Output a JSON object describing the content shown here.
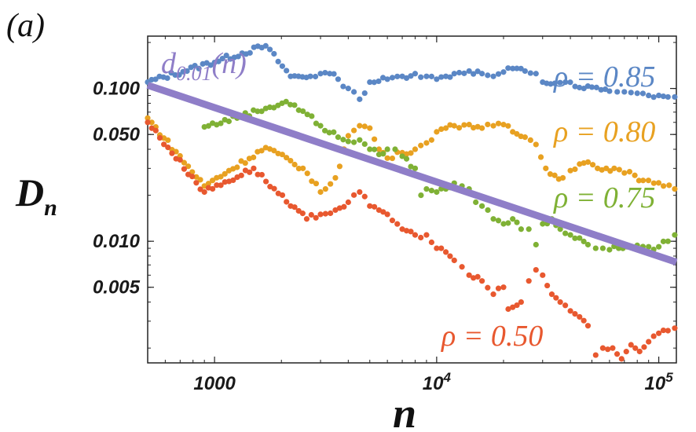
{
  "chart_data": {
    "type": "scatter",
    "panel_label": "(a)",
    "title": "",
    "xlabel": "n",
    "ylabel": "D",
    "ylabel_sub": "n",
    "xscale": "log",
    "yscale": "log",
    "xlim": [
      500,
      120000
    ],
    "ylim": [
      0.0016,
      0.22
    ],
    "x_ticks": [
      {
        "value": 1000,
        "base": "1000",
        "exp": ""
      },
      {
        "value": 10000,
        "base": "10",
        "exp": "4"
      },
      {
        "value": 100000,
        "base": "10",
        "exp": "5"
      }
    ],
    "y_ticks": [
      {
        "value": 0.1,
        "label": "0.100"
      },
      {
        "value": 0.05,
        "label": "0.050"
      },
      {
        "value": 0.01,
        "label": "0.010"
      },
      {
        "value": 0.005,
        "label": "0.005"
      }
    ],
    "reference_line": {
      "name_base": "d",
      "name_sub": "0.01",
      "name_arg": "(n)",
      "color": "#8f7ec8",
      "x": [
        500,
        120000
      ],
      "y": [
        0.105,
        0.0073
      ]
    },
    "series": [
      {
        "name": "ρ = 0.85",
        "color": "#5b87c5",
        "points": [
          [
            500,
            0.11
          ],
          [
            1700,
            0.19
          ],
          [
            2200,
            0.12
          ],
          [
            2700,
            0.12
          ],
          [
            3000,
            0.125
          ],
          [
            3300,
            0.125
          ],
          [
            3600,
            0.115
          ],
          [
            4000,
            0.1
          ],
          [
            4500,
            0.085
          ],
          [
            5000,
            0.11
          ],
          [
            6000,
            0.115
          ],
          [
            7000,
            0.12
          ],
          [
            8000,
            0.125
          ],
          [
            9000,
            0.12
          ],
          [
            10000,
            0.115
          ],
          [
            11000,
            0.12
          ],
          [
            12000,
            0.125
          ],
          [
            14000,
            0.13
          ],
          [
            16000,
            0.125
          ],
          [
            18000,
            0.12
          ],
          [
            20000,
            0.128
          ],
          [
            22000,
            0.135
          ],
          [
            25000,
            0.13
          ],
          [
            28000,
            0.125
          ],
          [
            30000,
            0.11
          ],
          [
            34000,
            0.108
          ],
          [
            38000,
            0.11
          ],
          [
            42000,
            0.103
          ],
          [
            46000,
            0.1
          ],
          [
            50000,
            0.102
          ],
          [
            55000,
            0.098
          ],
          [
            60000,
            0.096
          ],
          [
            65000,
            0.095
          ],
          [
            70000,
            0.095
          ],
          [
            75000,
            0.094
          ],
          [
            80000,
            0.093
          ],
          [
            90000,
            0.09
          ],
          [
            100000,
            0.09
          ],
          [
            110000,
            0.088
          ],
          [
            118000,
            0.088
          ]
        ]
      },
      {
        "name": "ρ = 0.80",
        "color": "#e8a121",
        "points": [
          [
            500,
            0.064
          ],
          [
            900,
            0.023
          ],
          [
            1700,
            0.041
          ],
          [
            2500,
            0.03
          ],
          [
            3000,
            0.021
          ],
          [
            3500,
            0.026
          ],
          [
            4000,
            0.049
          ],
          [
            4500,
            0.057
          ],
          [
            5000,
            0.055
          ],
          [
            5500,
            0.04
          ],
          [
            6000,
            0.035
          ],
          [
            7000,
            0.038
          ],
          [
            8000,
            0.04
          ],
          [
            9000,
            0.044
          ],
          [
            10000,
            0.052
          ],
          [
            11000,
            0.055
          ],
          [
            12000,
            0.057
          ],
          [
            14000,
            0.058
          ],
          [
            16000,
            0.055
          ],
          [
            18000,
            0.057
          ],
          [
            20000,
            0.058
          ],
          [
            22000,
            0.052
          ],
          [
            25000,
            0.048
          ],
          [
            28000,
            0.043
          ],
          [
            31000,
            0.03
          ],
          [
            34000,
            0.027
          ],
          [
            37000,
            0.026
          ],
          [
            40000,
            0.029
          ],
          [
            44000,
            0.032
          ],
          [
            48000,
            0.033
          ],
          [
            53000,
            0.03
          ],
          [
            58000,
            0.03
          ],
          [
            63000,
            0.03
          ],
          [
            70000,
            0.028
          ],
          [
            78000,
            0.027
          ],
          [
            85000,
            0.025
          ],
          [
            95000,
            0.024
          ],
          [
            105000,
            0.023
          ],
          [
            118000,
            0.022
          ]
        ]
      },
      {
        "name": "ρ = 0.75",
        "color": "#7fb135",
        "points": [
          [
            900,
            0.056
          ],
          [
            1700,
            0.074
          ],
          [
            2100,
            0.082
          ],
          [
            2500,
            0.071
          ],
          [
            3000,
            0.057
          ],
          [
            3600,
            0.048
          ],
          [
            4000,
            0.045
          ],
          [
            4500,
            0.046
          ],
          [
            5000,
            0.04
          ],
          [
            5500,
            0.037
          ],
          [
            6000,
            0.04
          ],
          [
            6500,
            0.04
          ],
          [
            7000,
            0.036
          ],
          [
            8000,
            0.03
          ],
          [
            8500,
            0.02
          ],
          [
            9000,
            0.022
          ],
          [
            10000,
            0.021
          ],
          [
            11000,
            0.022
          ],
          [
            12000,
            0.024
          ],
          [
            13000,
            0.023
          ],
          [
            14000,
            0.022
          ],
          [
            15000,
            0.018
          ],
          [
            16000,
            0.017
          ],
          [
            17000,
            0.016
          ],
          [
            18000,
            0.014
          ],
          [
            20000,
            0.013
          ],
          [
            22000,
            0.014
          ],
          [
            24000,
            0.012
          ],
          [
            26000,
            0.012
          ],
          [
            28000,
            0.0095
          ],
          [
            30000,
            0.013
          ],
          [
            33000,
            0.014
          ],
          [
            36000,
            0.012
          ],
          [
            40000,
            0.011
          ],
          [
            44000,
            0.0105
          ],
          [
            48000,
            0.0095
          ],
          [
            52000,
            0.009
          ],
          [
            56000,
            0.009
          ],
          [
            60000,
            0.0088
          ],
          [
            66000,
            0.009
          ],
          [
            72000,
            0.0092
          ],
          [
            80000,
            0.0094
          ],
          [
            90000,
            0.0092
          ],
          [
            100000,
            0.0092
          ],
          [
            110000,
            0.01
          ],
          [
            118000,
            0.011
          ]
        ]
      },
      {
        "name": "ρ = 0.50",
        "color": "#e8582f",
        "points": [
          [
            500,
            0.06
          ],
          [
            900,
            0.021
          ],
          [
            1500,
            0.03
          ],
          [
            2200,
            0.017
          ],
          [
            2600,
            0.014
          ],
          [
            3000,
            0.015
          ],
          [
            3500,
            0.016
          ],
          [
            4000,
            0.018
          ],
          [
            4500,
            0.021
          ],
          [
            5000,
            0.017
          ],
          [
            5500,
            0.016
          ],
          [
            6000,
            0.015
          ],
          [
            7000,
            0.012
          ],
          [
            8000,
            0.011
          ],
          [
            9000,
            0.011
          ],
          [
            10000,
            0.009
          ],
          [
            11000,
            0.0085
          ],
          [
            12000,
            0.0075
          ],
          [
            13000,
            0.0068
          ],
          [
            14000,
            0.006
          ],
          [
            16000,
            0.0055
          ],
          [
            18000,
            0.0045
          ],
          [
            20000,
            0.005
          ],
          [
            21000,
            0.0036
          ],
          [
            22000,
            0.0037
          ],
          [
            24000,
            0.004
          ],
          [
            26000,
            0.0055
          ],
          [
            28000,
            0.0065
          ],
          [
            30000,
            0.006
          ],
          [
            33000,
            0.0045
          ],
          [
            36000,
            0.004
          ],
          [
            40000,
            0.0035
          ],
          [
            44000,
            0.0032
          ],
          [
            48000,
            0.0028
          ],
          [
            52000,
            0.0018
          ],
          [
            56000,
            0.002
          ],
          [
            62000,
            0.002
          ],
          [
            68000,
            0.0017
          ],
          [
            75000,
            0.0021
          ],
          [
            82000,
            0.0019
          ],
          [
            90000,
            0.0022
          ],
          [
            100000,
            0.0025
          ],
          [
            110000,
            0.0026
          ],
          [
            118000,
            0.0027
          ]
        ]
      }
    ]
  }
}
